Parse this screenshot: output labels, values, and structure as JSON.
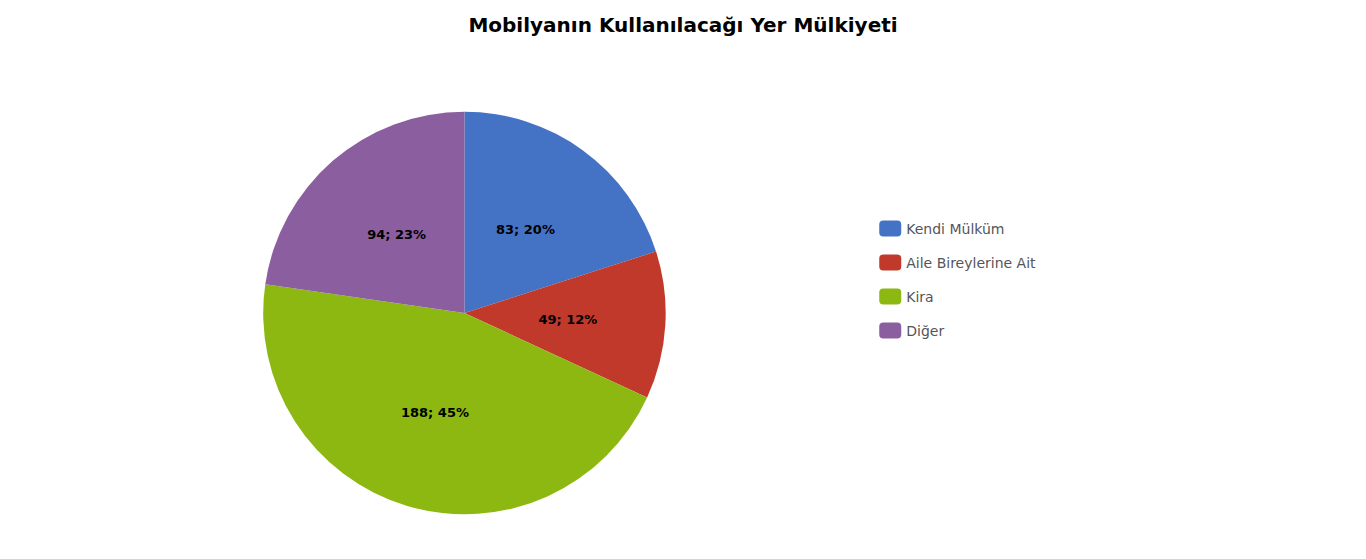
{
  "chart_data": {
    "type": "pie",
    "title": "Mobilyanın Kullanılacağı Yer Mülkiyeti",
    "categories": [
      "Kendi Mülküm",
      "Aile Bireylerine Ait",
      "Kira",
      "Diğer"
    ],
    "values": [
      83,
      49,
      188,
      94
    ],
    "value_labels": [
      "83; 20%",
      "49; 12%",
      "188; 45%",
      "94; 23%"
    ],
    "colors": [
      "#4472C4",
      "#C0392B",
      "#8DB811",
      "#8B5EA0"
    ],
    "data_labels": true,
    "legend": "right"
  }
}
